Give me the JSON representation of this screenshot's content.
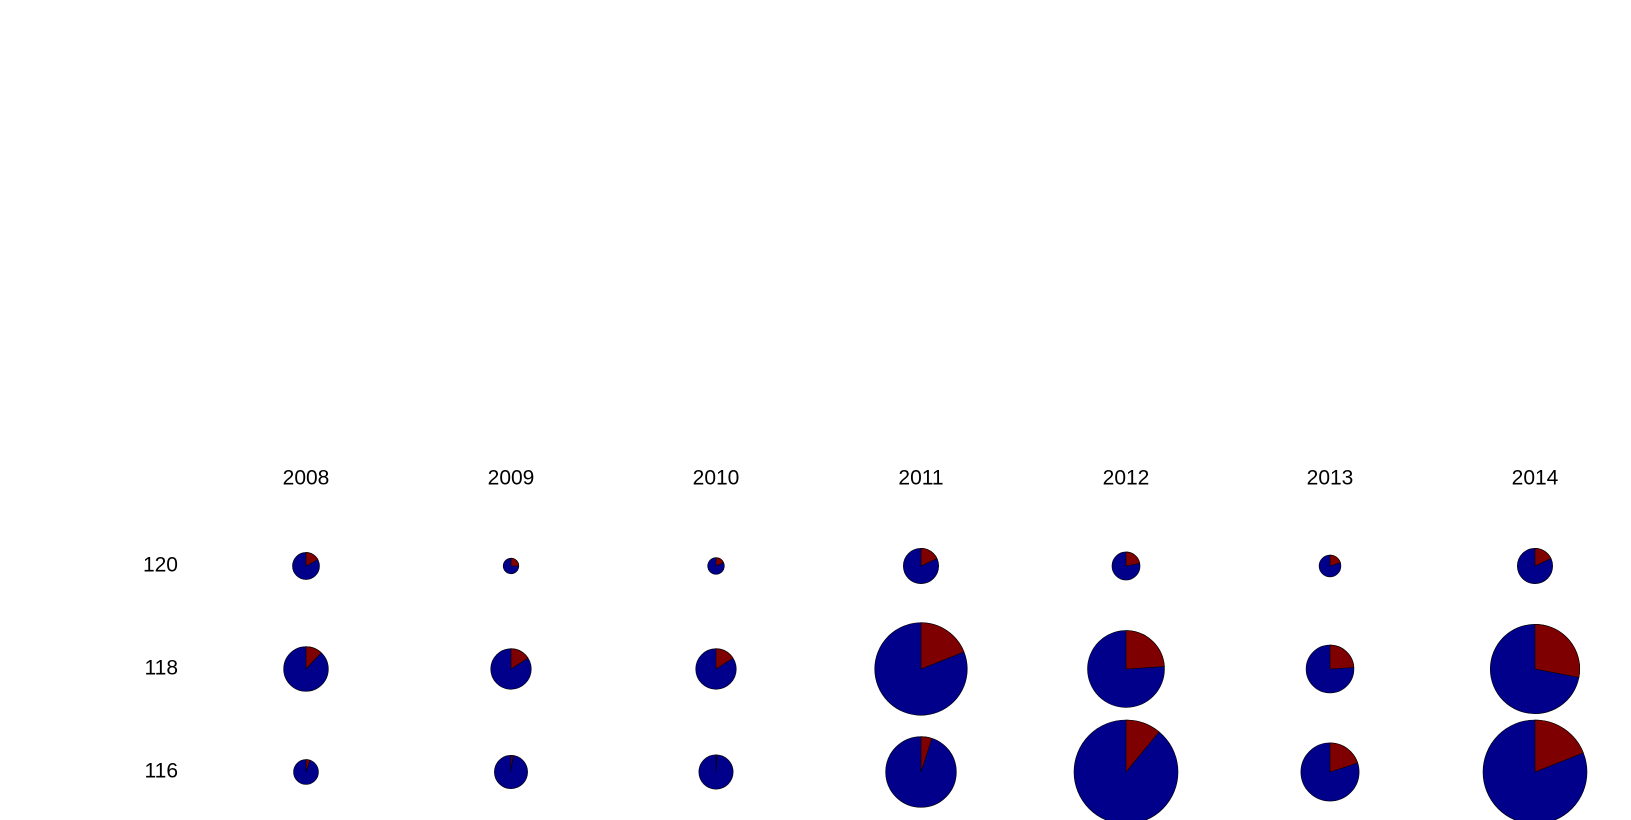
{
  "chart_data": {
    "type": "pie",
    "layout": "pie-grid",
    "columns": [
      "2008",
      "2009",
      "2010",
      "2011",
      "2012",
      "2013",
      "2014"
    ],
    "rows": [
      "120",
      "118",
      "116"
    ],
    "series": [
      {
        "name": "",
        "color": "#00008b"
      },
      {
        "name": "",
        "color": "#7f0000"
      }
    ],
    "cells": [
      [
        {
          "size": 0.26,
          "share": 0.17
        },
        {
          "size": 0.15,
          "share": 0.25
        },
        {
          "size": 0.16,
          "share": 0.18
        },
        {
          "size": 0.34,
          "share": 0.18
        },
        {
          "size": 0.27,
          "share": 0.22
        },
        {
          "size": 0.21,
          "share": 0.2
        },
        {
          "size": 0.34,
          "share": 0.18
        }
      ],
      [
        {
          "size": 0.43,
          "share": 0.12
        },
        {
          "size": 0.39,
          "share": 0.16
        },
        {
          "size": 0.39,
          "share": 0.16
        },
        {
          "size": 0.89,
          "share": 0.19
        },
        {
          "size": 0.74,
          "share": 0.24
        },
        {
          "size": 0.46,
          "share": 0.24
        },
        {
          "size": 0.86,
          "share": 0.28
        }
      ],
      [
        {
          "size": 0.24,
          "share": 0.05
        },
        {
          "size": 0.32,
          "share": 0.02
        },
        {
          "size": 0.33,
          "share": 0.01
        },
        {
          "size": 0.68,
          "share": 0.05
        },
        {
          "size": 1.0,
          "share": 0.11
        },
        {
          "size": 0.56,
          "share": 0.2
        },
        {
          "size": 1.0,
          "share": 0.19
        }
      ]
    ]
  }
}
